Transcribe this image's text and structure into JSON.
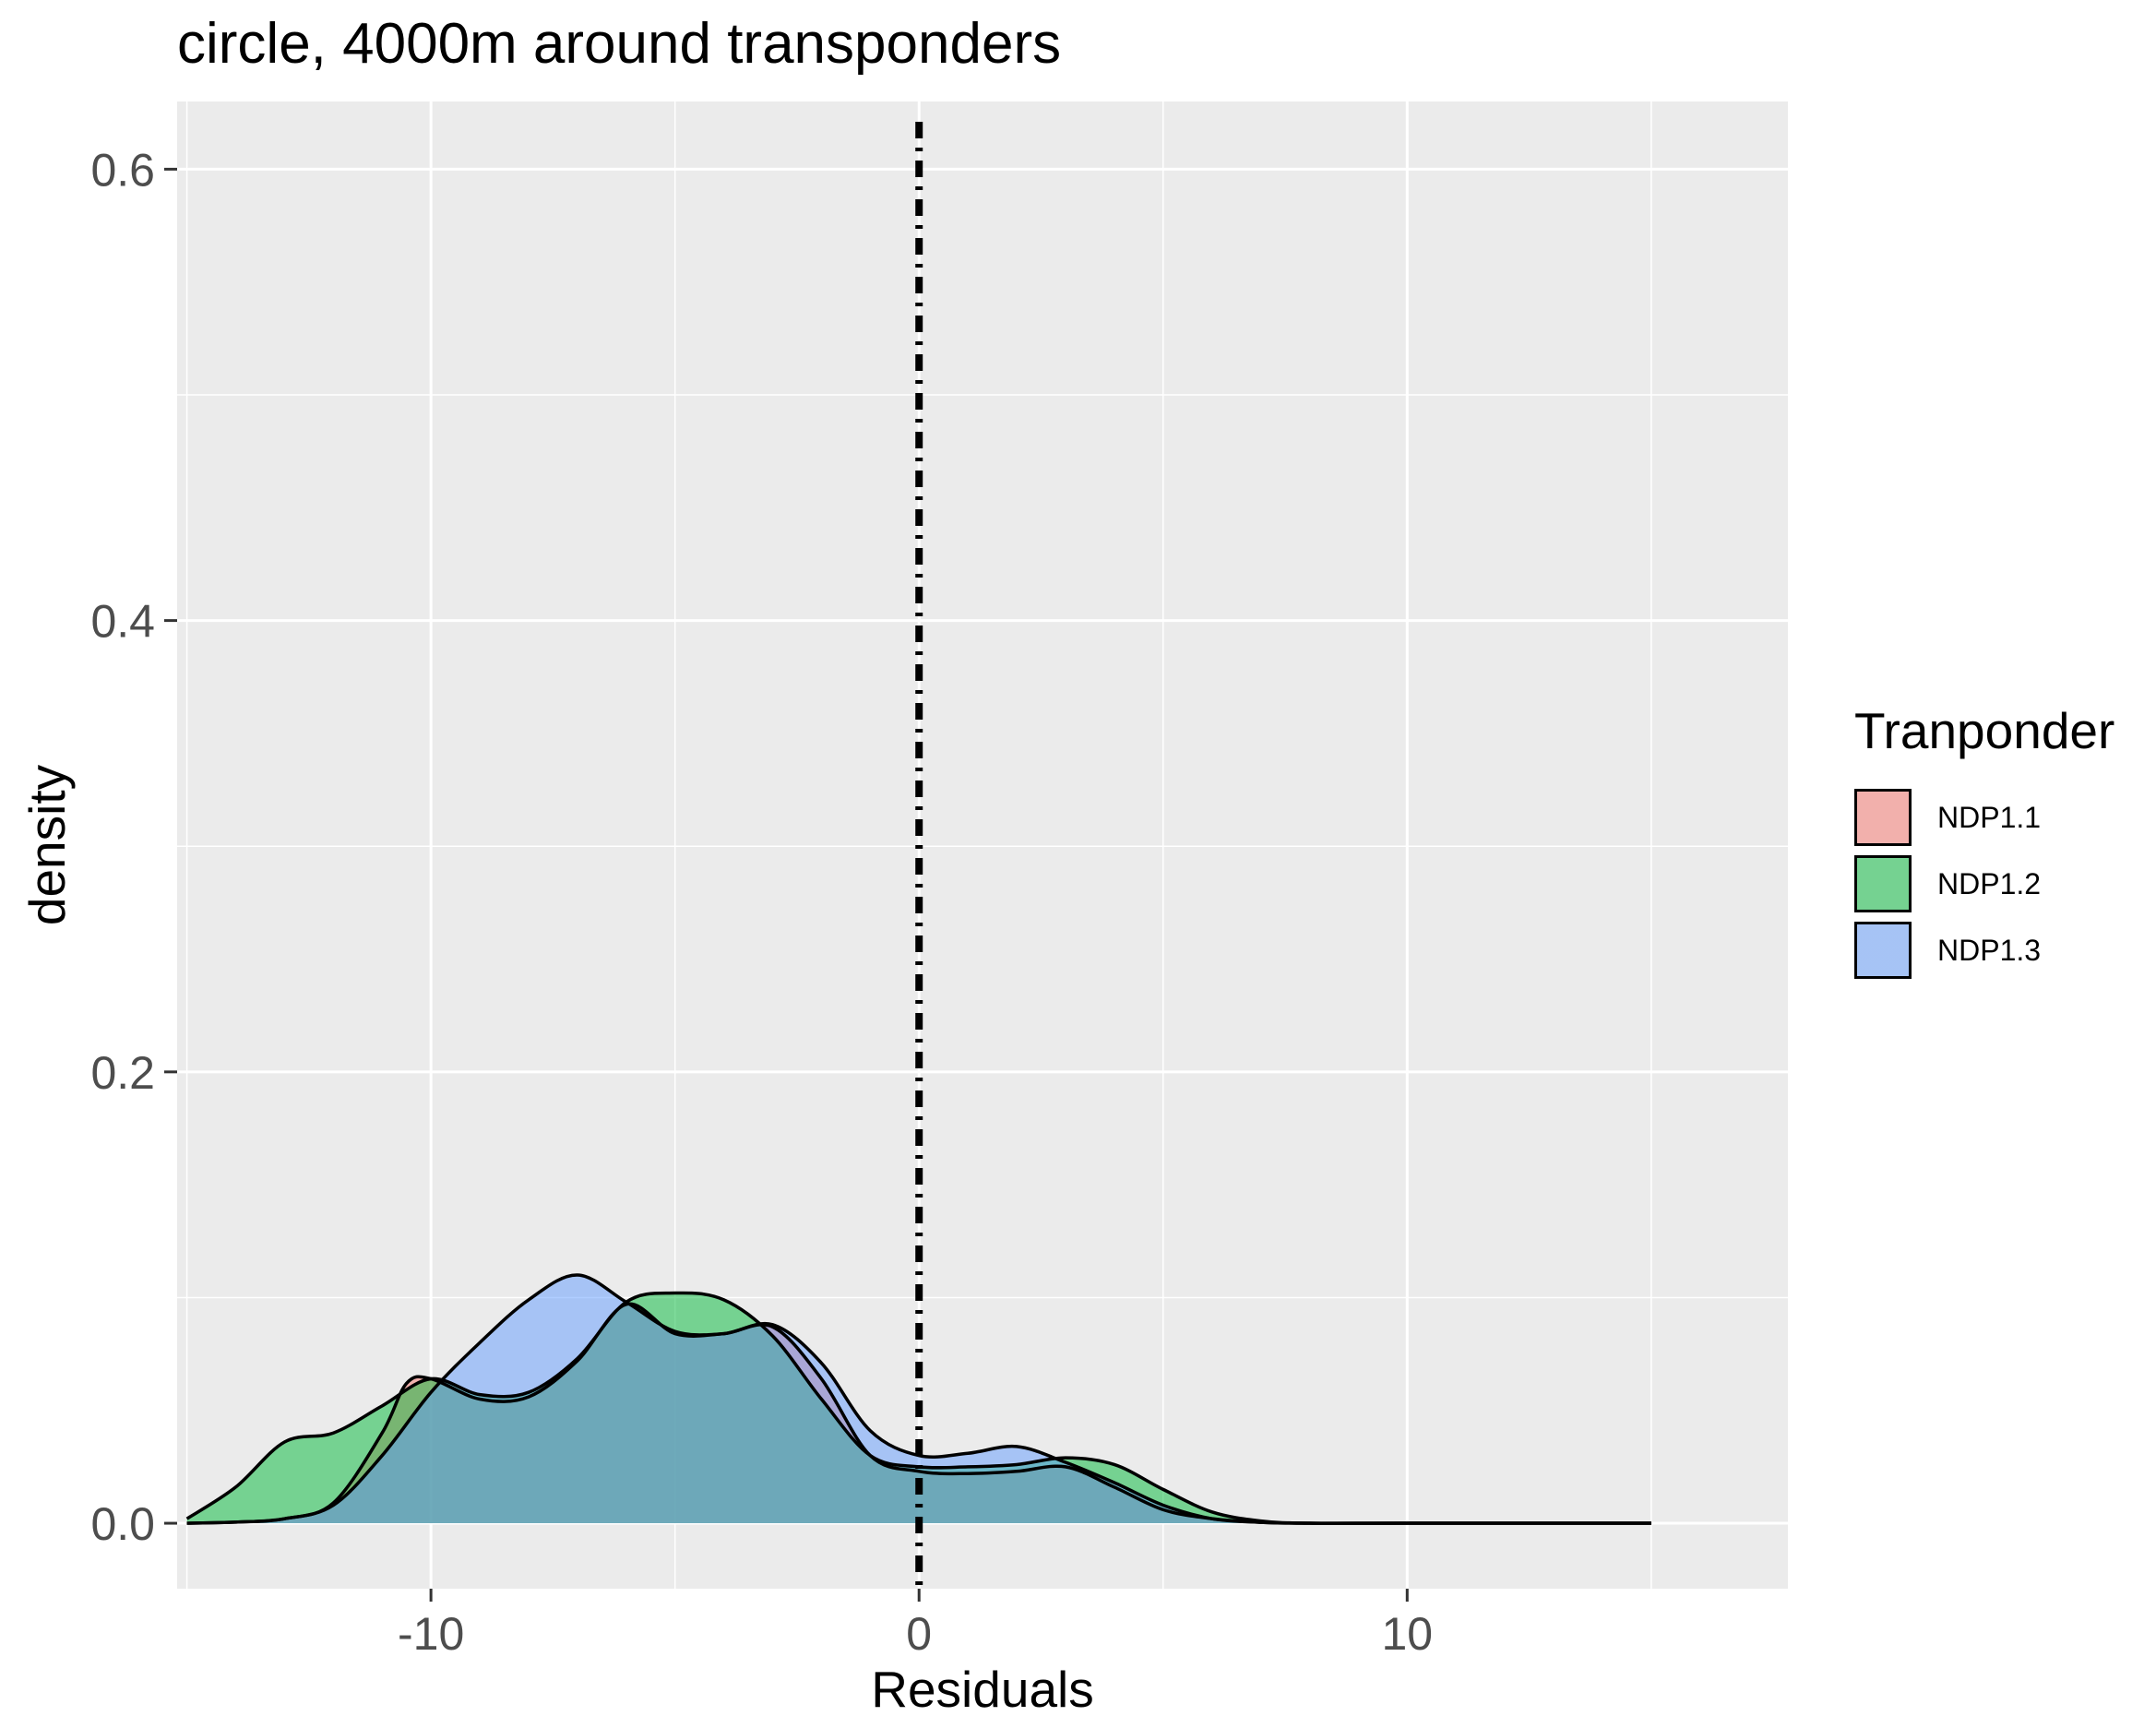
{
  "chart_data": {
    "type": "area",
    "title": "circle, 4000m around transponders",
    "xlabel": "Residuals",
    "ylabel": "density",
    "xlim": [
      -15.2,
      17.8
    ],
    "ylim": [
      -0.029,
      0.63
    ],
    "x_ticks": [
      -10,
      0,
      10
    ],
    "x_tick_labels": [
      "-10",
      "0",
      "10"
    ],
    "y_ticks": [
      0.0,
      0.2,
      0.4,
      0.6
    ],
    "y_tick_labels": [
      "0.0",
      "0.2",
      "0.4",
      "0.6"
    ],
    "grid": true,
    "legend_title": "Tranponder",
    "legend_position": "right",
    "reference_line": {
      "x": 0,
      "style": "dot-dash"
    },
    "series": [
      {
        "name": "NDP1.1",
        "color": "#F8766D",
        "points": [
          [
            -15,
            0
          ],
          [
            -14,
            0.0005
          ],
          [
            -13,
            0.002
          ],
          [
            -12,
            0.009
          ],
          [
            -11,
            0.04
          ],
          [
            -10.5,
            0.062
          ],
          [
            -10,
            0.064
          ],
          [
            -9,
            0.055
          ],
          [
            -8,
            0.056
          ],
          [
            -7,
            0.072
          ],
          [
            -6,
            0.097
          ],
          [
            -5,
            0.084
          ],
          [
            -4,
            0.084
          ],
          [
            -3,
            0.087
          ],
          [
            -2,
            0.064
          ],
          [
            -1,
            0.03
          ],
          [
            0,
            0.023
          ],
          [
            1,
            0.022
          ],
          [
            2,
            0.023
          ],
          [
            3,
            0.025
          ],
          [
            4,
            0.016
          ],
          [
            5,
            0.006
          ],
          [
            6,
            0.002
          ],
          [
            7,
            0.0004
          ],
          [
            8,
            0
          ],
          [
            10,
            0
          ],
          [
            15,
            0
          ]
        ]
      },
      {
        "name": "NDP1.2",
        "color": "#00BA38",
        "points": [
          [
            -15,
            0.002
          ],
          [
            -14,
            0.016
          ],
          [
            -13,
            0.036
          ],
          [
            -12,
            0.04
          ],
          [
            -11,
            0.052
          ],
          [
            -10,
            0.064
          ],
          [
            -9,
            0.057
          ],
          [
            -8,
            0.058
          ],
          [
            -7,
            0.073
          ],
          [
            -6,
            0.098
          ],
          [
            -5,
            0.102
          ],
          [
            -4,
            0.099
          ],
          [
            -3,
            0.083
          ],
          [
            -2,
            0.055
          ],
          [
            -1,
            0.03
          ],
          [
            0,
            0.025
          ],
          [
            1,
            0.025
          ],
          [
            2,
            0.026
          ],
          [
            3,
            0.029
          ],
          [
            4,
            0.026
          ],
          [
            5,
            0.015
          ],
          [
            6,
            0.005
          ],
          [
            7,
            0.001
          ],
          [
            8,
            0
          ],
          [
            10,
            0
          ],
          [
            15,
            0
          ]
        ]
      },
      {
        "name": "NDP1.3",
        "color": "#619CFF",
        "points": [
          [
            -15,
            0
          ],
          [
            -14,
            0.0005
          ],
          [
            -13,
            0.002
          ],
          [
            -12,
            0.008
          ],
          [
            -11,
            0.03
          ],
          [
            -10,
            0.058
          ],
          [
            -9,
            0.08
          ],
          [
            -8,
            0.099
          ],
          [
            -7,
            0.11
          ],
          [
            -6,
            0.098
          ],
          [
            -5,
            0.085
          ],
          [
            -4,
            0.084
          ],
          [
            -3,
            0.088
          ],
          [
            -2,
            0.071
          ],
          [
            -1,
            0.041
          ],
          [
            0,
            0.03
          ],
          [
            1,
            0.031
          ],
          [
            2,
            0.034
          ],
          [
            3,
            0.027
          ],
          [
            4,
            0.018
          ],
          [
            5,
            0.008
          ],
          [
            6,
            0.002
          ],
          [
            7,
            0.0004
          ],
          [
            8,
            0
          ],
          [
            10,
            0
          ],
          [
            15,
            0
          ]
        ]
      }
    ]
  }
}
